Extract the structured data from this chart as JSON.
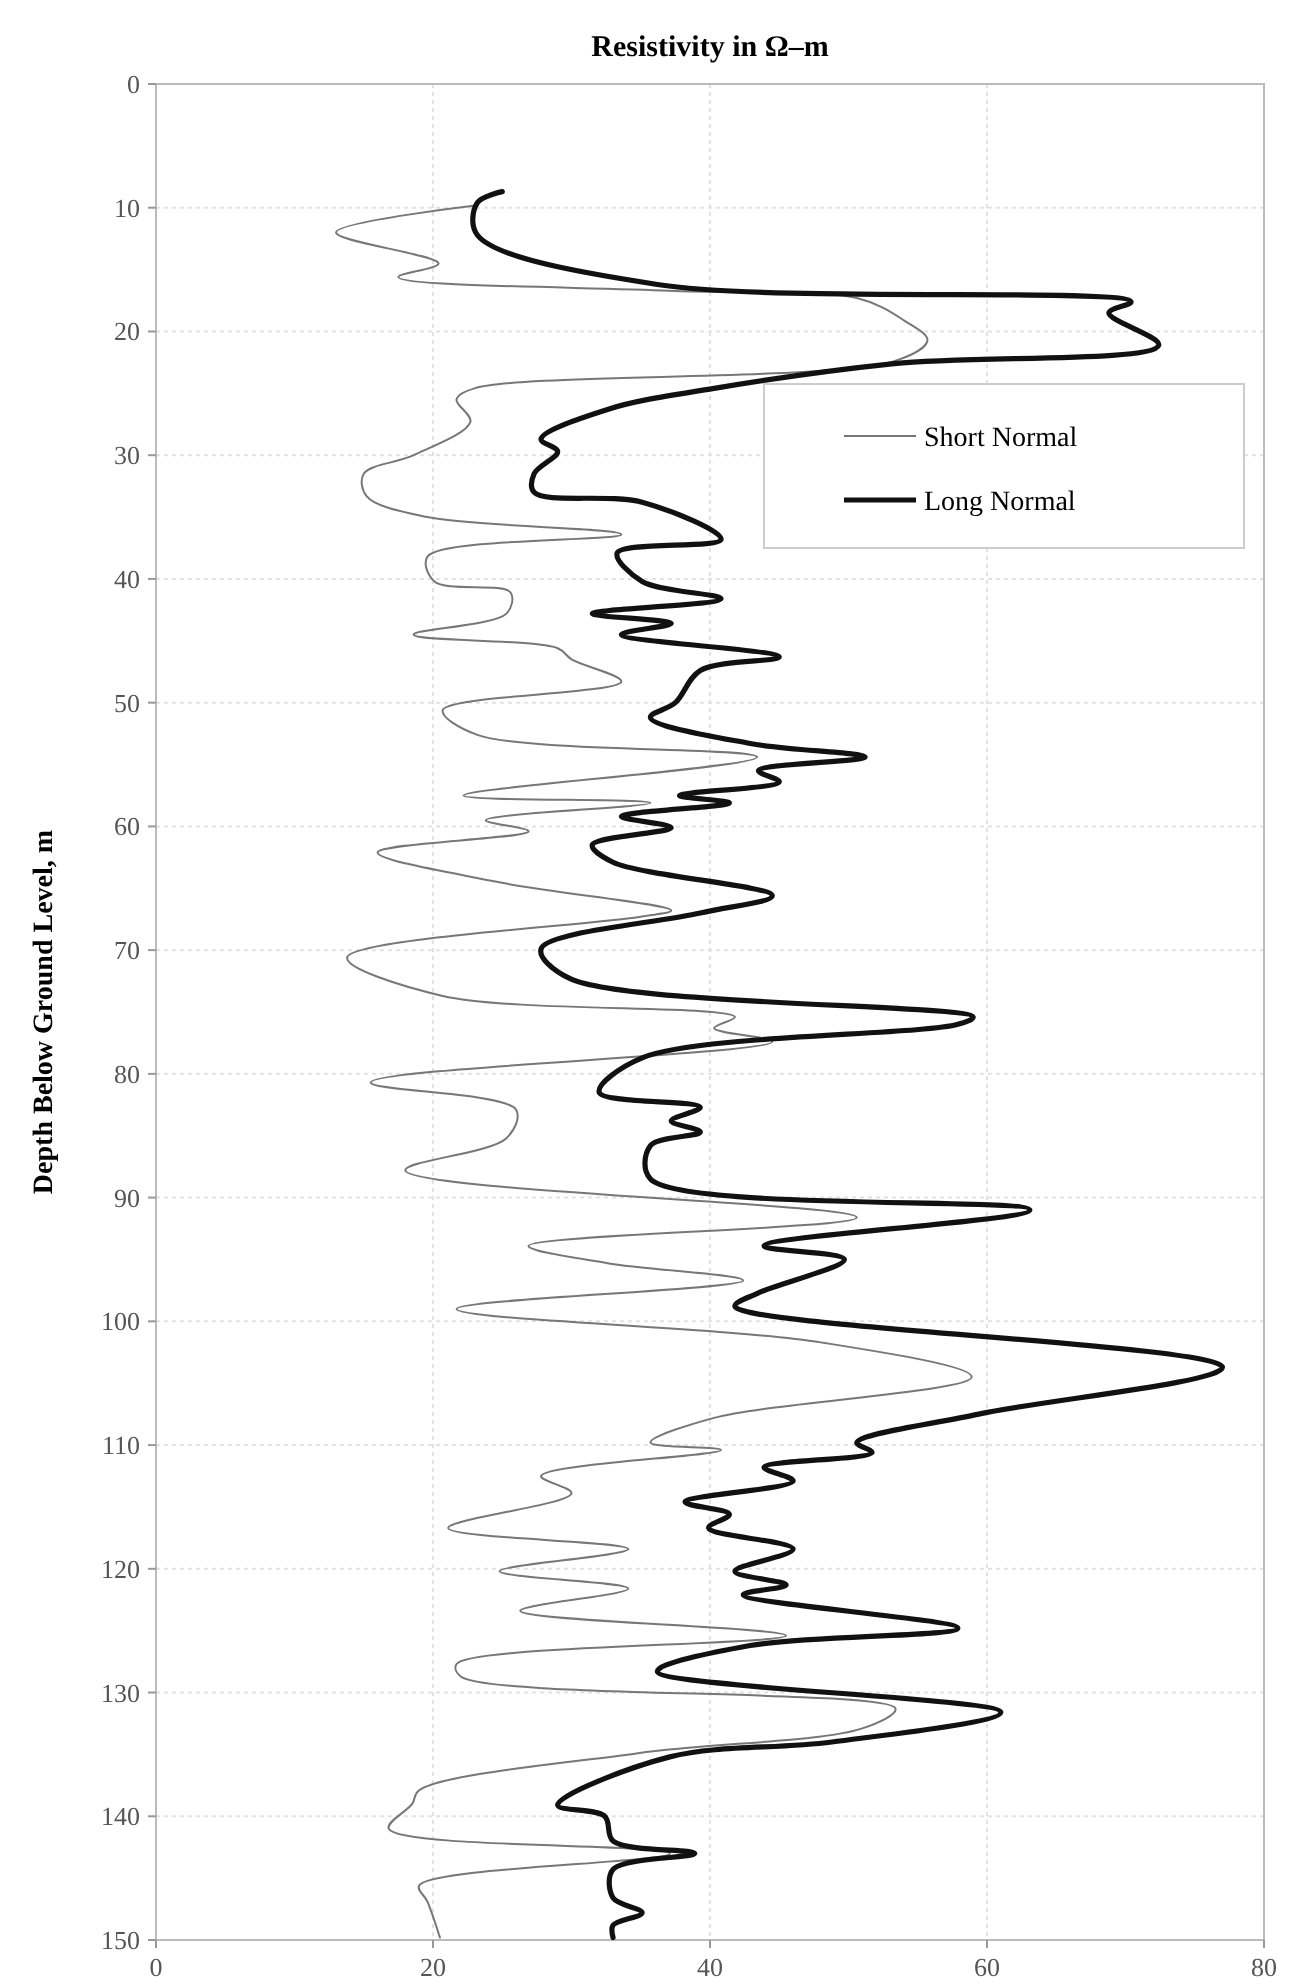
{
  "chart_data": {
    "type": "line",
    "title": "Resistivity in Ω–m",
    "ylabel": "Depth Below Ground Level, m",
    "xlim": [
      0,
      80
    ],
    "xticks": [
      0,
      20,
      40,
      60,
      80
    ],
    "ylim": [
      150,
      0
    ],
    "yticks": [
      0,
      10,
      20,
      30,
      40,
      50,
      60,
      70,
      80,
      90,
      100,
      110,
      120,
      130,
      140,
      150
    ],
    "grid": true,
    "legend": "top right",
    "marker": "none",
    "line_style": "solid",
    "series": [
      {
        "name": "Short Normal",
        "color": "#777777",
        "x": [
          23.2,
          13,
          20.4,
          17.5,
          37,
          50.6,
          54,
          55.7,
          53.3,
          23,
          21.7,
          22.7,
          18.6,
          15,
          15.2,
          19.6,
          33.6,
          19.6,
          20.1,
          25.6,
          25.3,
          18.6,
          29,
          30,
          33.6,
          20.7,
          23.2,
          43.4,
          22.2,
          35.7,
          23.8,
          26.9,
          16,
          24.7,
          37.2,
          35,
          13.8,
          20.7,
          41.8,
          40.3,
          44.5,
          15.5,
          26,
          25.3,
          18,
          50.6,
          26.9,
          32.6,
          42.4,
          21.7,
          48,
          58.9,
          40.3,
          35.7,
          40.8,
          27.8,
          30,
          21.1,
          34.1,
          24.8,
          34.1,
          26.3,
          45.5,
          21.7,
          22,
          53.4,
          51,
          34.8,
          19,
          18.5,
          16.8,
          37.1,
          19,
          19.6,
          20.5
        ],
        "values": [
          9.8,
          12,
          14.5,
          15.6,
          16.7,
          17.3,
          19.1,
          20.7,
          22.4,
          24.6,
          25.5,
          27.3,
          30,
          31.5,
          33.3,
          35,
          36.4,
          38.2,
          40.2,
          41.1,
          42.8,
          44.5,
          45.6,
          46.5,
          48.3,
          50.6,
          52.6,
          54.4,
          57.5,
          58.1,
          59.5,
          60.4,
          62.1,
          64.5,
          66.8,
          67.3,
          70.6,
          73.7,
          75.4,
          76.3,
          77.4,
          80.7,
          82.9,
          85.2,
          87.8,
          91.6,
          93.9,
          95.3,
          96.7,
          99,
          101.7,
          104.5,
          107.8,
          109.8,
          110.4,
          112.5,
          113.9,
          116.7,
          118.4,
          120.2,
          121.6,
          123.4,
          125.4,
          127.7,
          128.7,
          131.3,
          132.9,
          134.9,
          137.9,
          139,
          141,
          143,
          145.6,
          146.9,
          149.8
        ]
      },
      {
        "name": "Long Normal",
        "color": "#111111",
        "x": [
          25,
          23.2,
          23.2,
          36.2,
          70.4,
          68.8,
          72.4,
          53.3,
          40.3,
          32.6,
          27.8,
          29,
          27.3,
          27.3,
          35.1,
          40.8,
          33.3,
          35.1,
          40.8,
          31.5,
          37.2,
          33.6,
          45,
          39.3,
          37.5,
          35.7,
          42.9,
          51.2,
          43.5,
          45,
          37.8,
          41.4,
          33.6,
          37.2,
          31.5,
          33,
          44.5,
          39.3,
          27.8,
          29.9,
          59,
          57.9,
          35.1,
          32,
          39.3,
          37.2,
          39.3,
          35.7,
          35.7,
          63.1,
          43.9,
          49.7,
          43.5,
          41.8,
          77,
          59.4,
          50.6,
          51.7,
          43.9,
          46,
          38.2,
          41.4,
          39.9,
          46,
          41.8,
          45.5,
          42.4,
          57.9,
          42.9,
          36.2,
          61,
          48.8,
          37.1,
          29,
          32.4,
          33,
          38.9,
          33,
          33,
          35.1,
          33,
          33
        ],
        "values": [
          8.7,
          9.6,
          12.2,
          16.2,
          17.6,
          18.5,
          21.1,
          22.6,
          24.6,
          26.3,
          28.7,
          29.7,
          31.5,
          33,
          33.8,
          36.8,
          37.9,
          40.2,
          41.6,
          42.8,
          43.6,
          44.5,
          46.3,
          47.4,
          50,
          51.2,
          53.3,
          54.4,
          55.5,
          56.4,
          57.5,
          58.1,
          59.2,
          60.1,
          61.5,
          62.9,
          65.6,
          67,
          69.9,
          72.3,
          75.4,
          76,
          78.7,
          81.5,
          82.7,
          83.8,
          84.7,
          85.8,
          88.5,
          91,
          93.9,
          95,
          97.7,
          98.8,
          103.7,
          107.5,
          109.8,
          110.6,
          111.8,
          112.9,
          114.6,
          115.6,
          116.7,
          118.4,
          120.2,
          121.3,
          122.1,
          124.8,
          126.2,
          128.3,
          131.6,
          134,
          135.2,
          139.1,
          140,
          142,
          143,
          144.3,
          146.6,
          147.8,
          148.8,
          149.8
        ]
      }
    ]
  }
}
